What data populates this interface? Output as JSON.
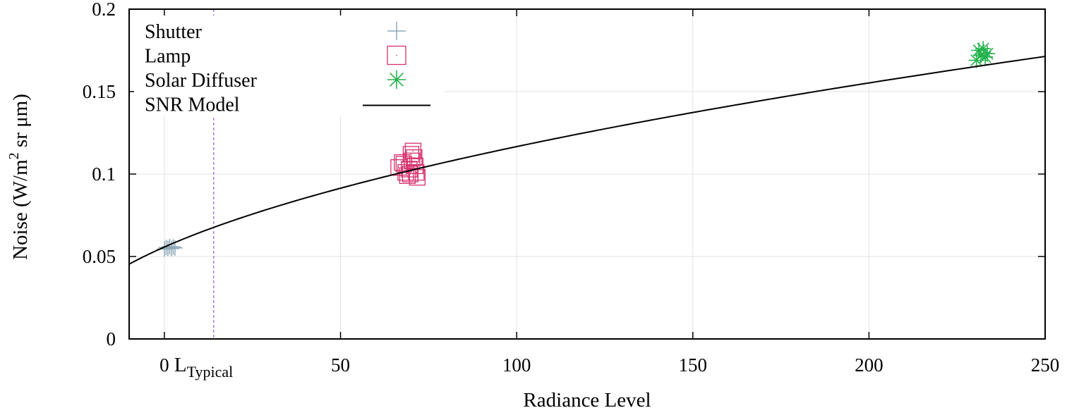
{
  "chart_data": {
    "type": "scatter",
    "title": "",
    "xlabel": "Radiance Level",
    "ylabel": {
      "prefix": "Noise (W/m",
      "superscript": "2",
      "suffix": " sr μm)"
    },
    "xlim": [
      -10,
      250
    ],
    "ylim": [
      0,
      0.2
    ],
    "xticks": [
      {
        "value": 0,
        "label": "0"
      },
      {
        "value": 50,
        "label": "50"
      },
      {
        "value": 100,
        "label": "100"
      },
      {
        "value": 150,
        "label": "150"
      },
      {
        "value": 200,
        "label": "200"
      },
      {
        "value": 250,
        "label": "250"
      }
    ],
    "yticks": [
      {
        "value": 0,
        "label": "0"
      },
      {
        "value": 0.05,
        "label": "0.05"
      },
      {
        "value": 0.1,
        "label": "0.1"
      },
      {
        "value": 0.15,
        "label": "0.15"
      },
      {
        "value": 0.2,
        "label": "0.2"
      }
    ],
    "grid": true,
    "legend_position": "top-left",
    "reference_line": {
      "x": 14,
      "label": "L",
      "label_subscript": "Typical",
      "color": "#9b59d0"
    },
    "series": [
      {
        "name": "Shutter",
        "marker": "plus",
        "color": "#8fa9b8",
        "points": [
          {
            "x": 0.0,
            "y": 0.0545
          },
          {
            "x": 0.5,
            "y": 0.0555
          },
          {
            "x": 1.0,
            "y": 0.055
          },
          {
            "x": 1.5,
            "y": 0.056
          },
          {
            "x": 2.0,
            "y": 0.0548
          },
          {
            "x": 2.5,
            "y": 0.0558
          },
          {
            "x": 3.0,
            "y": 0.0552
          }
        ]
      },
      {
        "name": "Lamp",
        "marker": "square",
        "color": "#d6336c",
        "points": [
          {
            "x": 66.5,
            "y": 0.104
          },
          {
            "x": 67.5,
            "y": 0.107
          },
          {
            "x": 68.5,
            "y": 0.101
          },
          {
            "x": 69.0,
            "y": 0.099
          },
          {
            "x": 69.5,
            "y": 0.103
          },
          {
            "x": 70.0,
            "y": 0.112
          },
          {
            "x": 70.3,
            "y": 0.108
          },
          {
            "x": 70.6,
            "y": 0.114
          },
          {
            "x": 70.9,
            "y": 0.11
          },
          {
            "x": 71.2,
            "y": 0.105
          },
          {
            "x": 71.5,
            "y": 0.101
          },
          {
            "x": 71.8,
            "y": 0.098
          },
          {
            "x": 68.0,
            "y": 0.106
          },
          {
            "x": 69.8,
            "y": 0.1
          }
        ]
      },
      {
        "name": "Solar Diffuser",
        "marker": "star",
        "color": "#22b24c",
        "points": [
          {
            "x": 230.5,
            "y": 0.169
          },
          {
            "x": 231.2,
            "y": 0.175
          },
          {
            "x": 231.8,
            "y": 0.172
          },
          {
            "x": 232.4,
            "y": 0.176
          },
          {
            "x": 233.0,
            "y": 0.171
          },
          {
            "x": 233.6,
            "y": 0.173
          }
        ]
      },
      {
        "name": "SNR Model",
        "marker": "line",
        "color": "#000000",
        "model": {
          "a": 0.0576,
          "b": 0.0079,
          "min_x": -10,
          "max_x": 250,
          "steps": 200
        }
      }
    ]
  }
}
